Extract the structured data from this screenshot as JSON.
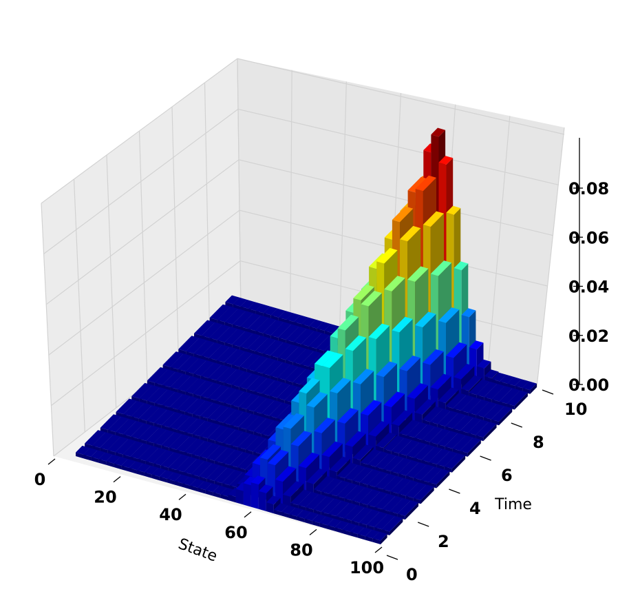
{
  "chart_data": {
    "type": "bar3d",
    "title": "",
    "xlabel": "State",
    "ylabel": "Time",
    "zlabel": "",
    "x_ticks": [
      "0",
      "20",
      "40",
      "60",
      "80",
      "100"
    ],
    "y_ticks": [
      "0",
      "2",
      "4",
      "6",
      "8",
      "10"
    ],
    "z_ticks": [
      "0.00",
      "0.02",
      "0.04",
      "0.06",
      "0.08"
    ],
    "xlim": [
      0,
      100
    ],
    "ylim": [
      0,
      10
    ],
    "zlim": [
      0,
      0.095
    ],
    "grid": true,
    "colormap": "jet",
    "series": [
      {
        "time": 0,
        "peak_state": 58,
        "peak_value": 0.01
      },
      {
        "time": 1,
        "peak_state": 59,
        "peak_value": 0.017
      },
      {
        "time": 2,
        "peak_state": 60,
        "peak_value": 0.024
      },
      {
        "time": 3,
        "peak_state": 61,
        "peak_value": 0.031
      },
      {
        "time": 4,
        "peak_state": 62,
        "peak_value": 0.038
      },
      {
        "time": 5,
        "peak_state": 63,
        "peak_value": 0.045
      },
      {
        "time": 6,
        "peak_state": 64,
        "peak_value": 0.053
      },
      {
        "time": 7,
        "peak_state": 65,
        "peak_value": 0.061
      },
      {
        "time": 8,
        "peak_state": 66,
        "peak_value": 0.07
      },
      {
        "time": 9,
        "peak_state": 67,
        "peak_value": 0.08
      },
      {
        "time": 10,
        "peak_state": 68,
        "peak_value": 0.093
      }
    ]
  }
}
